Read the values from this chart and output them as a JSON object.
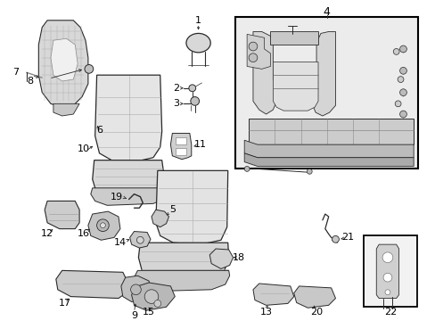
{
  "figsize": [
    4.89,
    3.6
  ],
  "dpi": 100,
  "bg": "#ffffff",
  "lc": "#2a2a2a",
  "gray1": "#e8e8e8",
  "gray2": "#d0d0d0",
  "gray3": "#b8b8b8",
  "gray4": "#f5f5f5",
  "box4_bg": "#e8e8e8",
  "box22_bg": "#f0f0f0"
}
